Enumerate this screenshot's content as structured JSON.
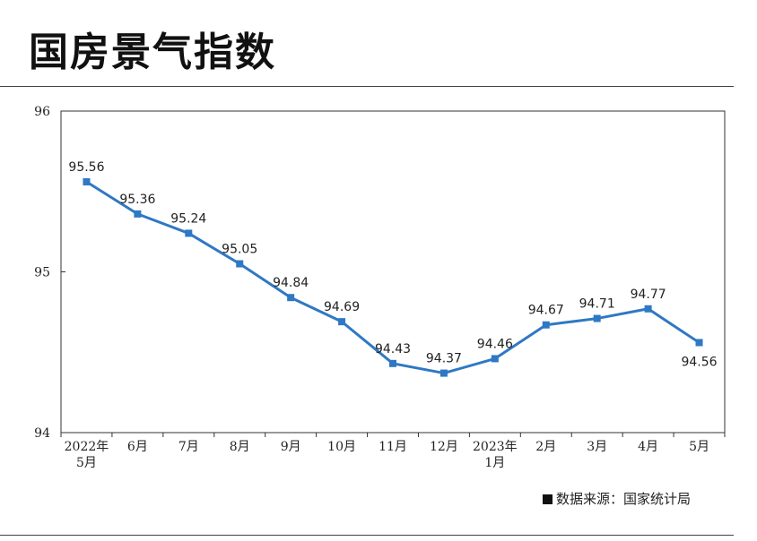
{
  "title": "国房景气指数",
  "source": "数据来源：国家统计局",
  "colors": {
    "line": "#2f78c4",
    "frame": "#333333"
  },
  "chart_data": {
    "type": "line",
    "title": "国房景气指数",
    "xlabel": "",
    "ylabel": "",
    "categories": [
      [
        "2022年",
        "5月"
      ],
      [
        "6月"
      ],
      [
        "7月"
      ],
      [
        "8月"
      ],
      [
        "9月"
      ],
      [
        "10月"
      ],
      [
        "11月"
      ],
      [
        "12月"
      ],
      [
        "2023年",
        "1月"
      ],
      [
        "2月"
      ],
      [
        "3月"
      ],
      [
        "4月"
      ],
      [
        "5月"
      ]
    ],
    "values": [
      95.56,
      95.36,
      95.24,
      95.05,
      94.84,
      94.69,
      94.43,
      94.37,
      94.46,
      94.67,
      94.71,
      94.77,
      94.56
    ],
    "ylim": [
      94,
      96
    ],
    "yticks": [
      94,
      95,
      96
    ],
    "grid": false,
    "legend": "none"
  }
}
